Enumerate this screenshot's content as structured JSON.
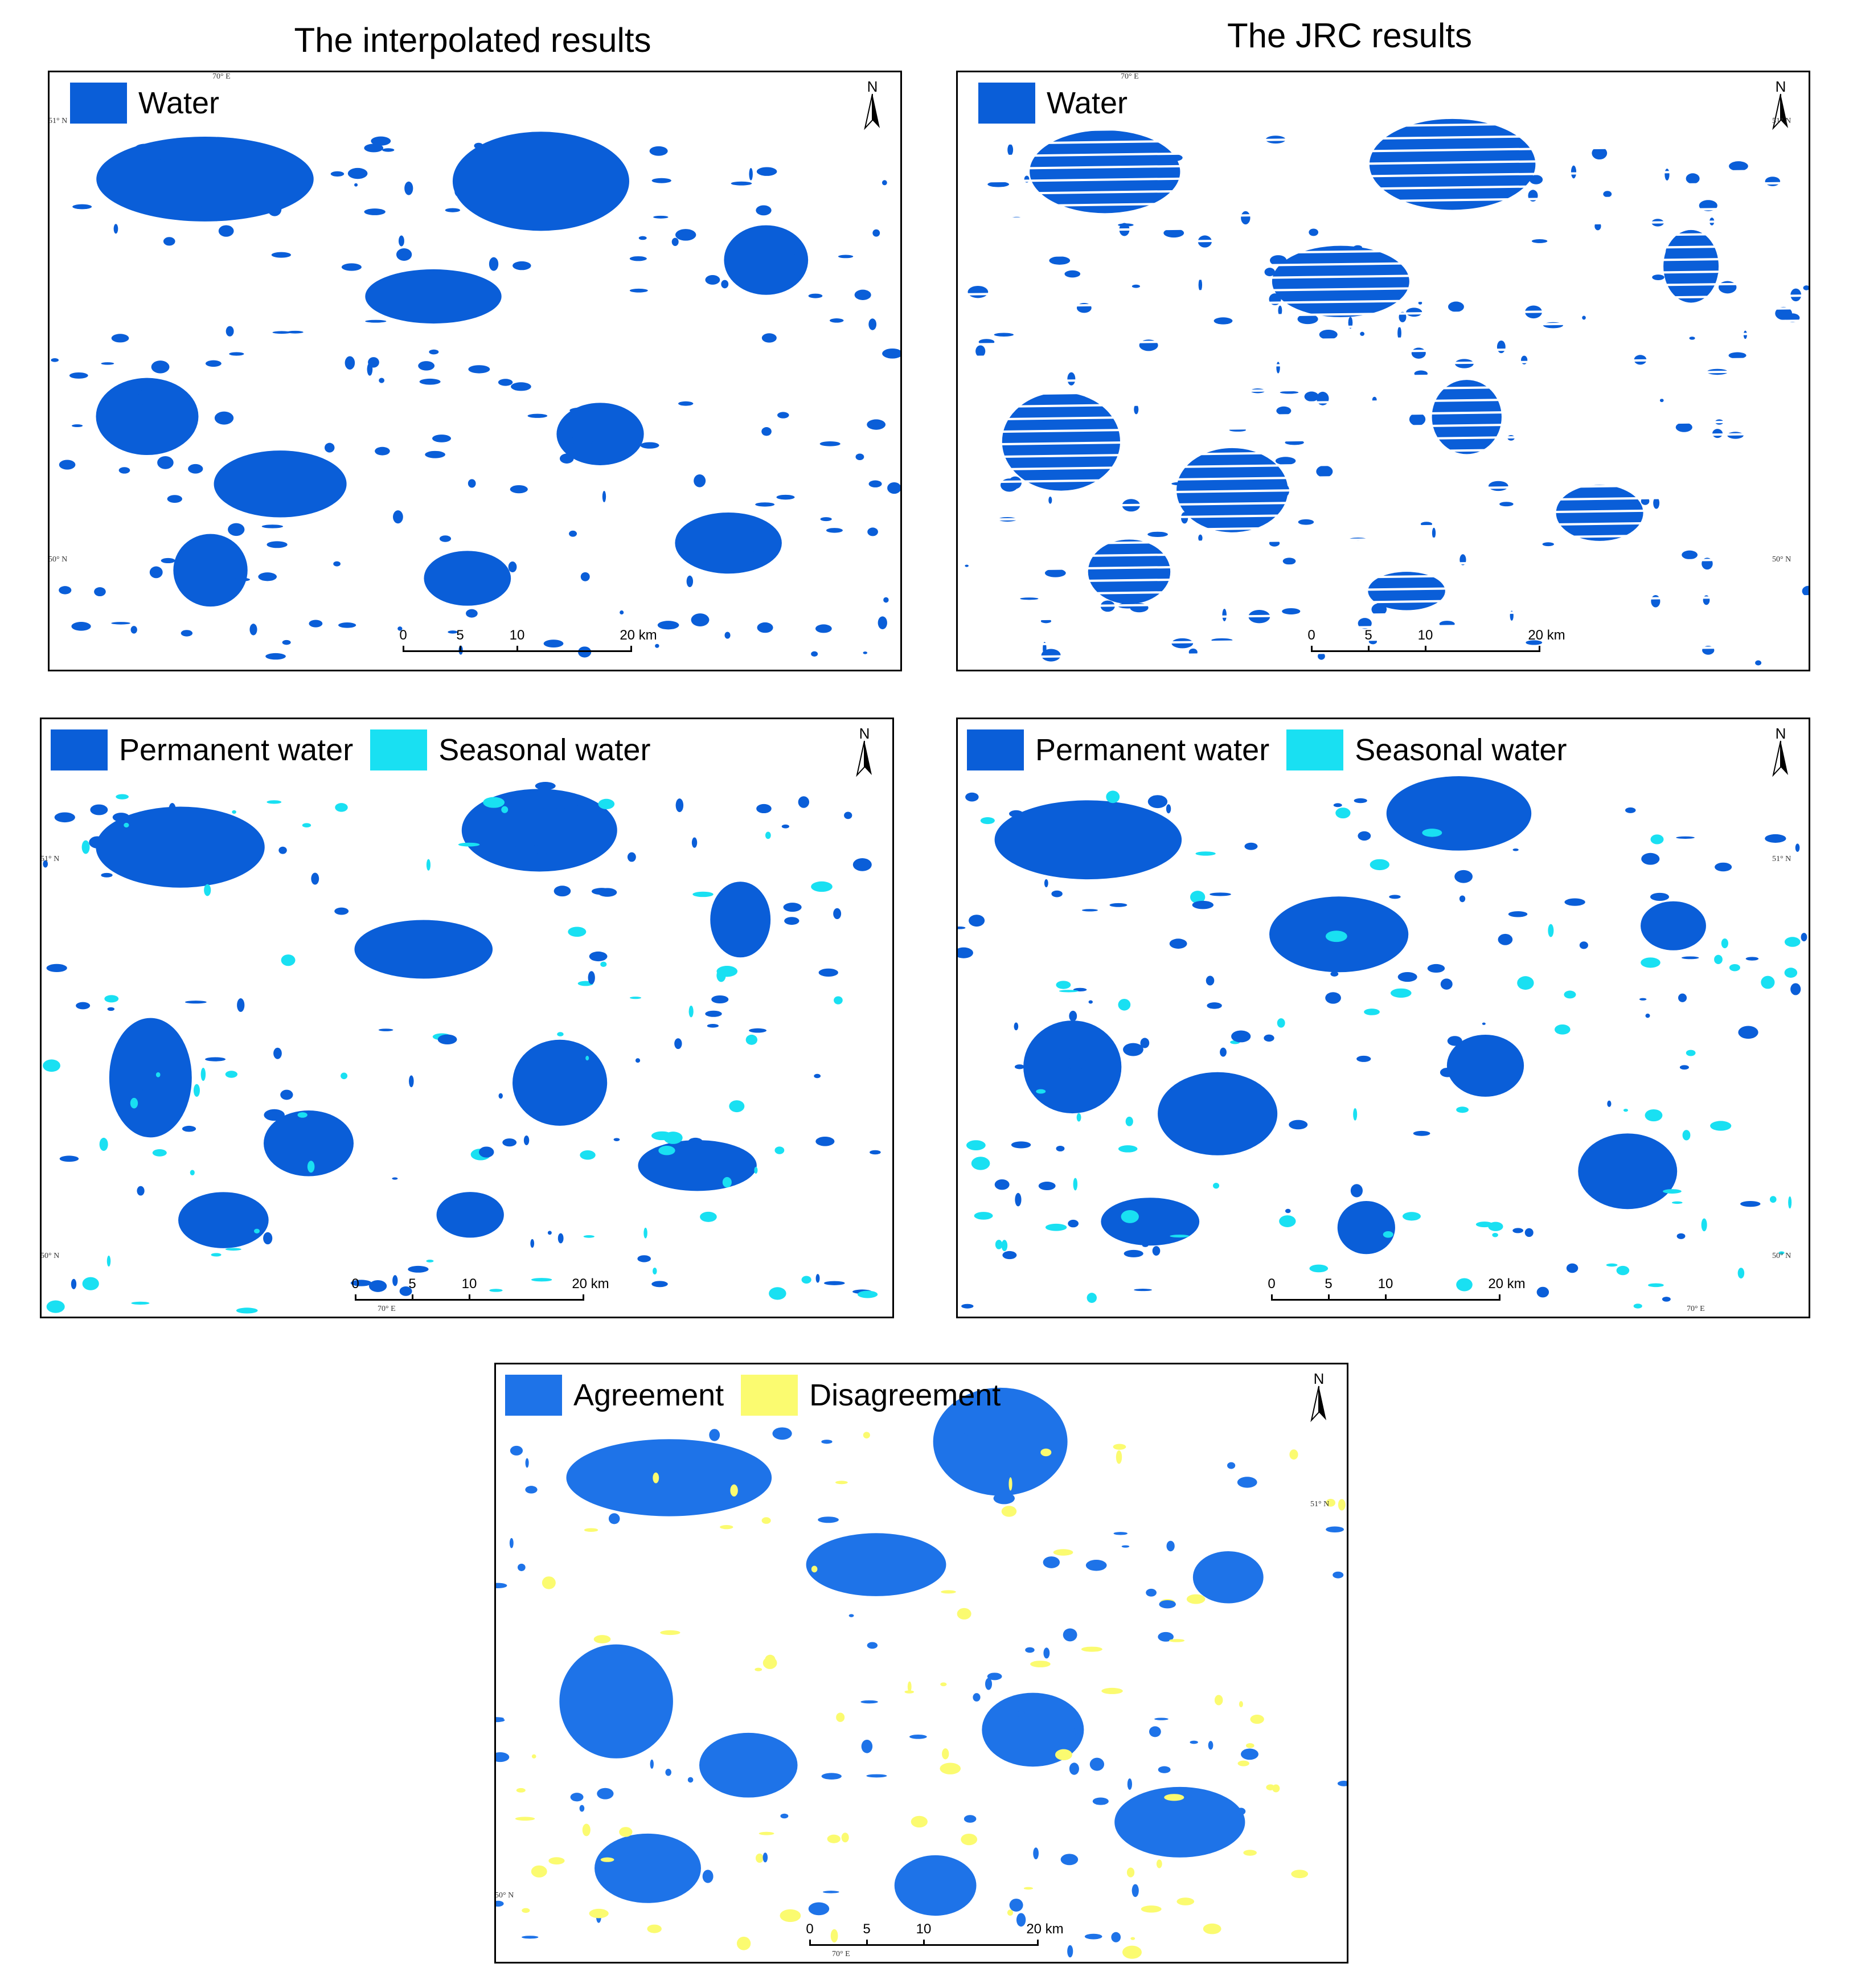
{
  "titles": {
    "left": "The interpolated results",
    "right": "The JRC results"
  },
  "colors": {
    "water": "#0a5ed8",
    "permanent": "#0a5ed8",
    "seasonal": "#19e0f2",
    "agreement": "#1e73e8",
    "disagreement": "#fbfb70"
  },
  "legend": {
    "water": "Water",
    "permanent": "Permanent water",
    "seasonal": "Seasonal water",
    "agreement": "Agreement",
    "disagreement": "Disagreement"
  },
  "north_label": "N",
  "scale": {
    "t0": "0",
    "t5": "5",
    "t10": "10",
    "t20": "20 km"
  },
  "coords": {
    "lon": "70° E",
    "lat_top": "51° N",
    "lat_bottom": "50° N"
  }
}
